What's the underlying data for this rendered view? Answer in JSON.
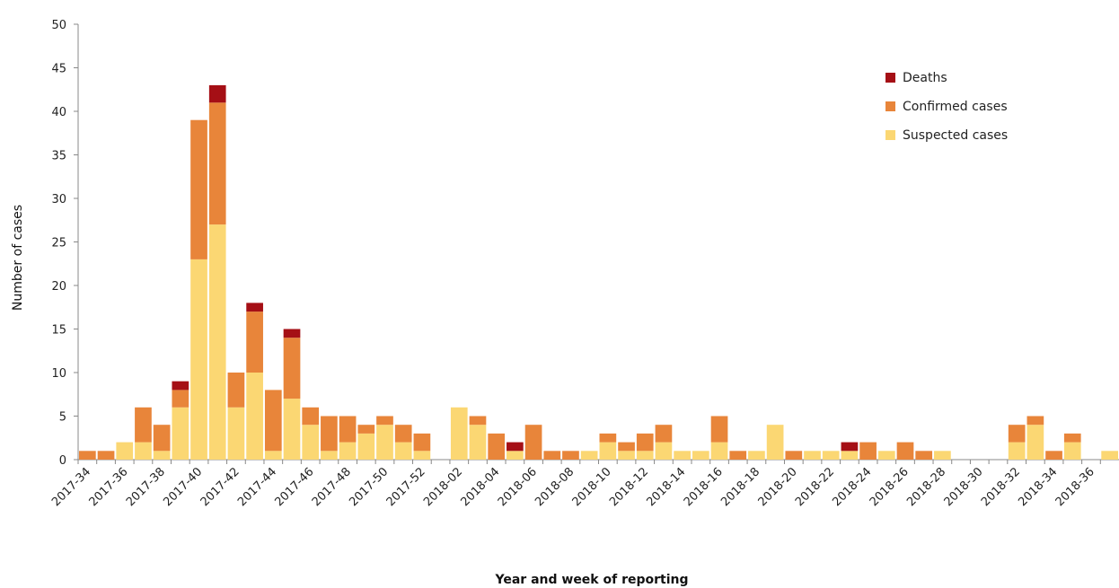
{
  "chart_data": {
    "type": "bar",
    "stacked": true,
    "xlabel": "Year and week of reporting",
    "ylabel": "Number of cases",
    "ylim": [
      0,
      50
    ],
    "yticks": [
      0,
      5,
      10,
      15,
      20,
      25,
      30,
      35,
      40,
      45,
      50
    ],
    "grid": false,
    "legend_position": "top-right",
    "categories": [
      "2017-34",
      "2017-35",
      "2017-36",
      "2017-37",
      "2017-38",
      "2017-39",
      "2017-40",
      "2017-41",
      "2017-42",
      "2017-43",
      "2017-44",
      "2017-45",
      "2017-46",
      "2017-47",
      "2017-48",
      "2017-49",
      "2017-50",
      "2017-51",
      "2017-52",
      "2018-01",
      "2018-02",
      "2018-03",
      "2018-04",
      "2018-05",
      "2018-06",
      "2018-07",
      "2018-08",
      "2018-09",
      "2018-10",
      "2018-11",
      "2018-12",
      "2018-13",
      "2018-14",
      "2018-15",
      "2018-16",
      "2018-17",
      "2018-18",
      "2018-19",
      "2018-20",
      "2018-21",
      "2018-22",
      "2018-23",
      "2018-24",
      "2018-25",
      "2018-26",
      "2018-27",
      "2018-28",
      "2018-29",
      "2018-30",
      "2018-31",
      "2018-32",
      "2018-33",
      "2018-34",
      "2018-35",
      "2018-36",
      "2018-37"
    ],
    "tick_labels": [
      "2017-34",
      "",
      "2017-36",
      "",
      "2017-38",
      "",
      "2017-40",
      "",
      "2017-42",
      "",
      "2017-44",
      "",
      "2017-46",
      "",
      "2017-48",
      "",
      "2017-50",
      "",
      "2017-52",
      "",
      "2018-02",
      "",
      "2018-04",
      "",
      "2018-06",
      "",
      "2018-08",
      "",
      "2018-10",
      "",
      "2018-12",
      "",
      "2018-14",
      "",
      "2018-16",
      "",
      "2018-18",
      "",
      "2018-20",
      "",
      "2018-22",
      "",
      "2018-24",
      "",
      "2018-26",
      "",
      "2018-28",
      "",
      "2018-30",
      "",
      "2018-32",
      "",
      "2018-34",
      "",
      "2018-36",
      ""
    ],
    "series": [
      {
        "name": "Suspected cases",
        "color": "#FBD773",
        "values": [
          0,
          0,
          2,
          2,
          1,
          6,
          23,
          27,
          6,
          10,
          1,
          7,
          4,
          1,
          2,
          3,
          4,
          2,
          1,
          0,
          6,
          4,
          0,
          1,
          0,
          0,
          0,
          1,
          2,
          1,
          1,
          2,
          1,
          1,
          2,
          0,
          1,
          4,
          0,
          1,
          1,
          1,
          0,
          1,
          0,
          0,
          1,
          0,
          0,
          0,
          2,
          4,
          0,
          2,
          0,
          1
        ]
      },
      {
        "name": "Confirmed cases",
        "color": "#E8853A",
        "values": [
          1,
          1,
          0,
          4,
          3,
          2,
          16,
          14,
          4,
          7,
          7,
          7,
          2,
          4,
          3,
          1,
          1,
          2,
          2,
          0,
          0,
          1,
          3,
          0,
          4,
          1,
          1,
          0,
          1,
          1,
          2,
          2,
          0,
          0,
          3,
          1,
          0,
          0,
          1,
          0,
          0,
          0,
          2,
          0,
          2,
          1,
          0,
          0,
          0,
          0,
          2,
          1,
          1,
          1,
          0,
          0
        ]
      },
      {
        "name": "Deaths",
        "color": "#A50F15",
        "values": [
          0,
          0,
          0,
          0,
          0,
          1,
          0,
          2,
          0,
          1,
          0,
          1,
          0,
          0,
          0,
          0,
          0,
          0,
          0,
          0,
          0,
          0,
          0,
          1,
          0,
          0,
          0,
          0,
          0,
          0,
          0,
          0,
          0,
          0,
          0,
          0,
          0,
          0,
          0,
          0,
          0,
          1,
          0,
          0,
          0,
          0,
          0,
          0,
          0,
          0,
          0,
          0,
          0,
          0,
          0,
          0
        ]
      }
    ],
    "legend_order": [
      "Deaths",
      "Confirmed cases",
      "Suspected cases"
    ]
  }
}
